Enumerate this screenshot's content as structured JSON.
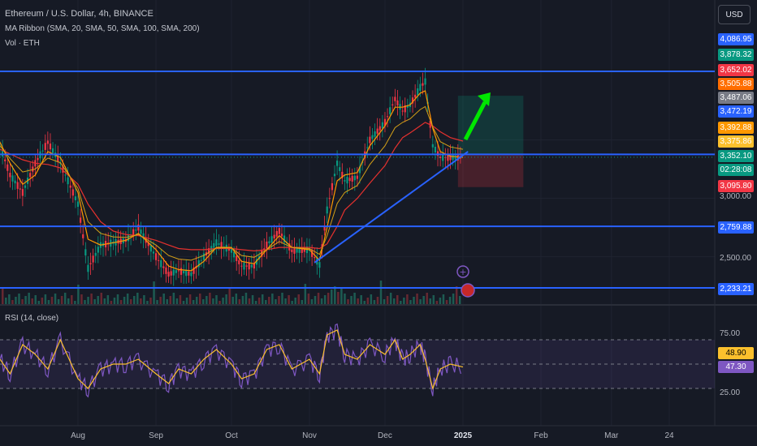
{
  "header": {
    "title": "Ethereum / U.S. Dollar, 4h, BINANCE",
    "ma_ribbon": "MA Ribbon (SMA, 20, SMA, 50, SMA, 100, SMA, 200)",
    "volume": "Vol · ETH",
    "rsi": "RSI (14, close)",
    "currency": "USD"
  },
  "price_tags": [
    {
      "label": "4,086.95",
      "color": "#2962ff"
    },
    {
      "label": "3,878.32",
      "color": "#089981"
    },
    {
      "label": "3,652.02",
      "color": "#f23645"
    },
    {
      "label": "3,505.88",
      "color": "#ff6d00"
    },
    {
      "label": "3,487.06",
      "color": "#787b86"
    },
    {
      "label": "3,472.19",
      "color": "#2962ff"
    },
    {
      "label": "3,392.88",
      "color": "#ff9800"
    },
    {
      "label": "3,375.86",
      "color": "#fbc02d"
    },
    {
      "label": "3,352.10",
      "color": "#089981"
    },
    {
      "label": "02:28:08",
      "color": "#089981"
    },
    {
      "label": "3,095.80",
      "color": "#f23645"
    },
    {
      "label": "2,759.88",
      "color": "#2962ff"
    },
    {
      "label": "2,233.21",
      "color": "#2962ff"
    }
  ],
  "price_axis": {
    "tick_3000": "3,000.00",
    "tick_2500": "2,500.00"
  },
  "rsi_axis": {
    "upper": "75.00",
    "lower": "25.00",
    "tag_a": "48.90",
    "tag_b": "47.30",
    "tag_a_color": "#fbc02d",
    "tag_b_color": "#7e57c2"
  },
  "time_axis": [
    {
      "label": "Aug",
      "bold": false
    },
    {
      "label": "Sep",
      "bold": false
    },
    {
      "label": "Oct",
      "bold": false
    },
    {
      "label": "Nov",
      "bold": false
    },
    {
      "label": "Dec",
      "bold": false
    },
    {
      "label": "2025",
      "bold": true
    },
    {
      "label": "Feb",
      "bold": false
    },
    {
      "label": "Mar",
      "bold": false
    },
    {
      "label": "24",
      "bold": false
    }
  ],
  "chart_data": {
    "type": "line",
    "symbol": "ETHUSD",
    "timeframe": "4h",
    "ylim": [
      2150,
      4150
    ],
    "price_series": {
      "dates": [
        "2024-07-01",
        "2024-07-05",
        "2024-07-10",
        "2024-07-15",
        "2024-07-20",
        "2024-07-25",
        "2024-08-01",
        "2024-08-05",
        "2024-08-10",
        "2024-08-15",
        "2024-08-20",
        "2024-08-25",
        "2024-09-01",
        "2024-09-06",
        "2024-09-10",
        "2024-09-15",
        "2024-09-20",
        "2024-09-25",
        "2024-10-01",
        "2024-10-05",
        "2024-10-10",
        "2024-10-15",
        "2024-10-20",
        "2024-10-25",
        "2024-11-01",
        "2024-11-05",
        "2024-11-08",
        "2024-11-12",
        "2024-11-15",
        "2024-11-20",
        "2024-11-25",
        "2024-12-01",
        "2024-12-05",
        "2024-12-08",
        "2024-12-11",
        "2024-12-15",
        "2024-12-17",
        "2024-12-20",
        "2024-12-23",
        "2024-12-27",
        "2025-01-01"
      ],
      "close": [
        3450,
        3200,
        3050,
        3300,
        3480,
        3300,
        2950,
        2400,
        2600,
        2620,
        2640,
        2750,
        2500,
        2350,
        2380,
        2350,
        2500,
        2620,
        2550,
        2420,
        2420,
        2600,
        2720,
        2550,
        2560,
        2430,
        2900,
        3300,
        3150,
        3180,
        3500,
        3650,
        3850,
        3750,
        3800,
        3950,
        4000,
        3450,
        3350,
        3350,
        3350
      ]
    },
    "sma_20": [
      3480,
      3300,
      3120,
      3200,
      3400,
      3350,
      3050,
      2650,
      2600,
      2620,
      2640,
      2700,
      2560,
      2420,
      2390,
      2380,
      2460,
      2580,
      2580,
      2460,
      2440,
      2560,
      2680,
      2580,
      2560,
      2470,
      2750,
      3150,
      3200,
      3220,
      3450,
      3620,
      3780,
      3780,
      3800,
      3900,
      3920,
      3600,
      3400,
      3360,
      3350
    ],
    "sma_100": [
      3420,
      3380,
      3330,
      3300,
      3290,
      3260,
      3120,
      2950,
      2800,
      2720,
      2690,
      2680,
      2640,
      2600,
      2570,
      2560,
      2560,
      2570,
      2570,
      2560,
      2550,
      2560,
      2580,
      2580,
      2580,
      2570,
      2610,
      2760,
      2900,
      3000,
      3130,
      3280,
      3430,
      3520,
      3560,
      3620,
      3650,
      3620,
      3570,
      3520,
      3490
    ],
    "trendline": {
      "x": [
        "2024-11-03",
        "2025-01-03"
      ],
      "y": [
        2450,
        3400
      ]
    },
    "horizontal_levels": [
      4086.95,
      3375.86,
      2759.88,
      2233.21
    ],
    "long_position": {
      "entry": 3375.86,
      "target": 3878.32,
      "stop": 3095.8,
      "x": [
        "2024-12-30",
        "2025-01-25"
      ]
    },
    "rsi": {
      "ylim": [
        0,
        100
      ],
      "overbought": 75,
      "oversold": 25,
      "values": [
        55,
        40,
        70,
        60,
        45,
        75,
        35,
        25,
        45,
        50,
        50,
        55,
        40,
        30,
        45,
        40,
        55,
        65,
        50,
        35,
        40,
        65,
        70,
        45,
        55,
        40,
        80,
        85,
        60,
        55,
        70,
        60,
        75,
        55,
        60,
        70,
        55,
        25,
        45,
        50,
        47
      ]
    }
  }
}
